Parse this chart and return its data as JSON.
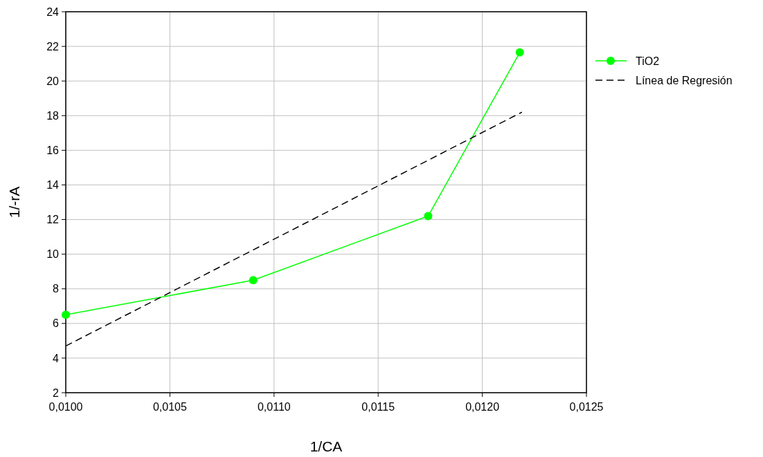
{
  "chart_data": {
    "type": "line",
    "xlabel": "1/CA",
    "ylabel": "1/-rA",
    "xlim": [
      0.01,
      0.0125
    ],
    "xticks": [
      {
        "value": 0.01,
        "label": "0,0100"
      },
      {
        "value": 0.0105,
        "label": "0,0105"
      },
      {
        "value": 0.011,
        "label": "0,0110"
      },
      {
        "value": 0.0115,
        "label": "0,0115"
      },
      {
        "value": 0.012,
        "label": "0,0120"
      },
      {
        "value": 0.0125,
        "label": "0,0125"
      }
    ],
    "ylim": [
      2,
      24
    ],
    "yticks": [
      2,
      4,
      6,
      8,
      10,
      12,
      14,
      16,
      18,
      20,
      22,
      24
    ],
    "grid": true,
    "legend": "top right",
    "series": [
      {
        "name": "TiO2",
        "color": "#00ff00",
        "x": [
          0.01,
          0.0109,
          0.01174,
          0.01218
        ],
        "values": [
          6.5,
          8.5,
          12.2,
          21.65
        ],
        "marker": "circle",
        "line_style": "solid"
      },
      {
        "name": "Línea de Regresión",
        "color": "#000000",
        "x": [
          0.01,
          0.01219
        ],
        "values": [
          4.7,
          18.2
        ],
        "marker": "none",
        "line_style": "dashed"
      }
    ]
  }
}
